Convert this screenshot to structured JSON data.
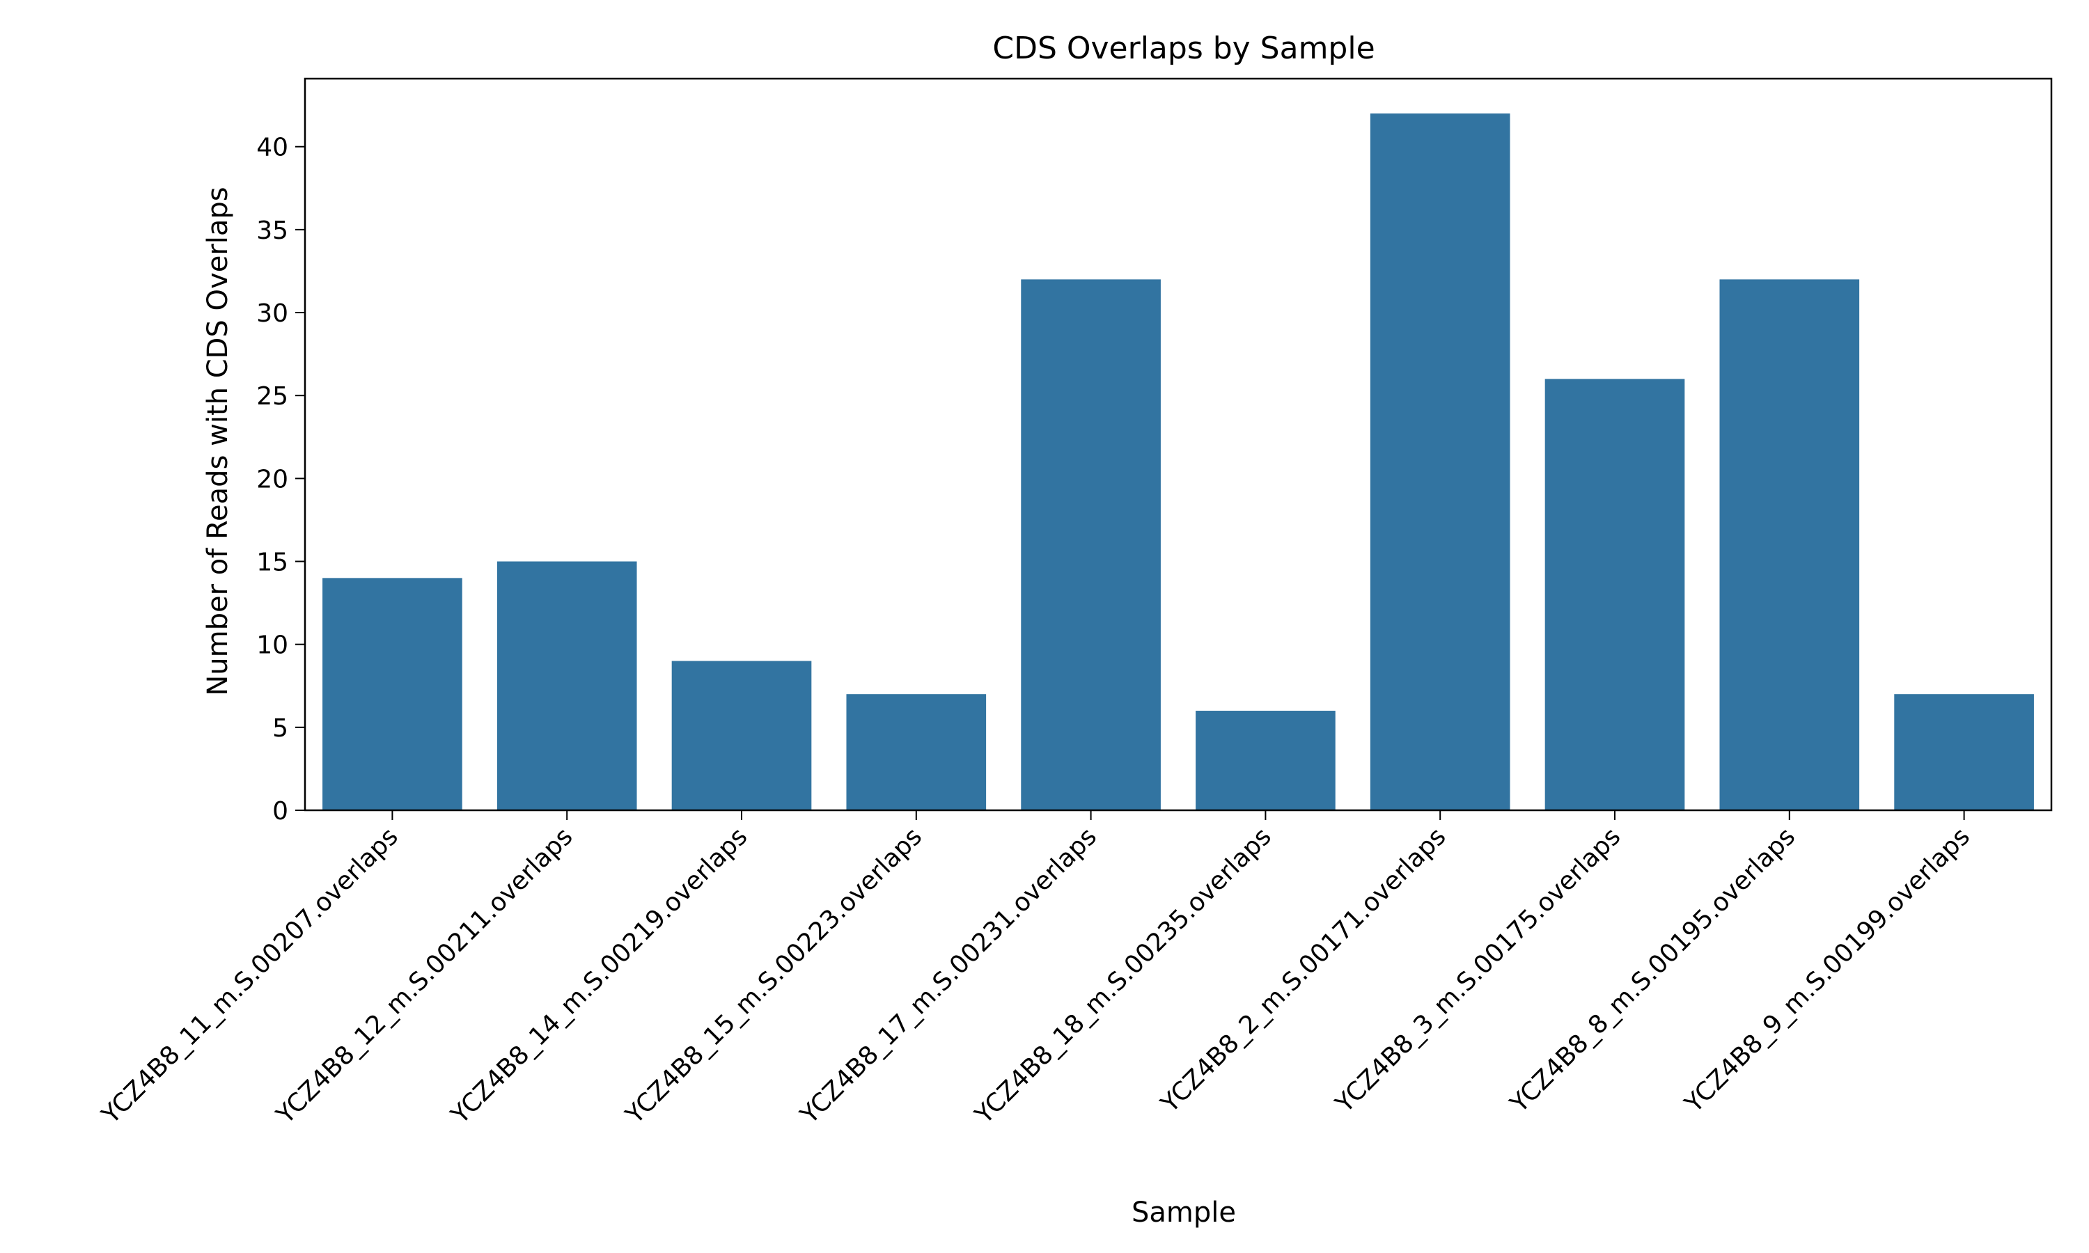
{
  "chart_data": {
    "type": "bar",
    "title": "CDS Overlaps by Sample",
    "xlabel": "Sample",
    "ylabel": "Number of Reads with CDS Overlaps",
    "categories": [
      "YCZ4B8_11_m.S.00207.overlaps",
      "YCZ4B8_12_m.S.00211.overlaps",
      "YCZ4B8_14_m.S.00219.overlaps",
      "YCZ4B8_15_m.S.00223.overlaps",
      "YCZ4B8_17_m.S.00231.overlaps",
      "YCZ4B8_18_m.S.00235.overlaps",
      "YCZ4B8_2_m.S.00171.overlaps",
      "YCZ4B8_3_m.S.00175.overlaps",
      "YCZ4B8_8_m.S.00195.overlaps",
      "YCZ4B8_9_m.S.00199.overlaps"
    ],
    "values": [
      14,
      15,
      9,
      7,
      32,
      6,
      42,
      26,
      32,
      7
    ],
    "ylim": [
      0,
      44.1
    ],
    "yticks": [
      0,
      5,
      10,
      15,
      20,
      25,
      30,
      35,
      40
    ],
    "bar_color": "#3274a1",
    "grid": false,
    "legend": "none"
  }
}
